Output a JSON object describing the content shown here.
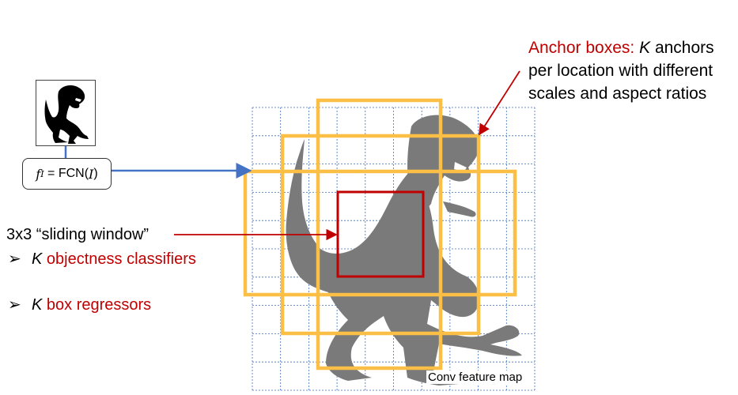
{
  "anchor_label": {
    "prefix": "Anchor boxes: ",
    "k": "K",
    "line1_rest": " anchors",
    "line2": "per location with different",
    "line3": "scales and aspect ratios"
  },
  "fcn_label": {
    "f": "f",
    "sub": "I",
    "eq": " = FCN(",
    "arg": "I",
    "close": ")"
  },
  "sliding_window_label": "3x3 “sliding window”",
  "bullets": [
    {
      "marker": "➢",
      "k": "K",
      "text": " objectness classifiers"
    },
    {
      "marker": "➢",
      "k": "K",
      "text": " box regressors"
    }
  ],
  "map_caption": "Conv feature map",
  "colors": {
    "grid": "#3f6fbf",
    "anchor": "#fbbf46",
    "window": "#c00000",
    "connector": "#4472c4",
    "silhouette": "#7a7a7a",
    "label_red": "#c00000"
  }
}
